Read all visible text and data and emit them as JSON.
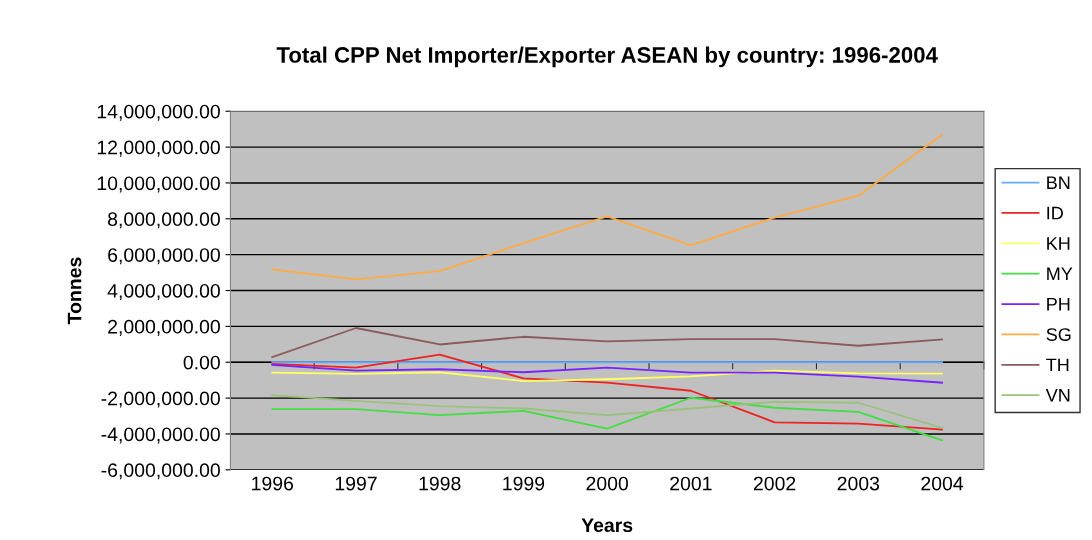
{
  "chart_data": {
    "type": "line",
    "title": "Total CPP Net Importer/Exporter ASEAN by country: 1996-2004",
    "xlabel": "Years",
    "ylabel": "Tonnes",
    "categories": [
      "1996",
      "1997",
      "1998",
      "1999",
      "2000",
      "2001",
      "2002",
      "2003",
      "2004"
    ],
    "series": [
      {
        "name": "BN",
        "color": "#66aaff",
        "values": [
          0,
          0,
          0,
          0,
          0,
          0,
          0,
          0,
          0
        ]
      },
      {
        "name": "ID",
        "color": "#ee2222",
        "values": [
          -90000,
          -300000,
          430000,
          -900000,
          -1140000,
          -1590000,
          -3350000,
          -3420000,
          -3760000
        ]
      },
      {
        "name": "KH",
        "color": "#ffff66",
        "values": [
          -580000,
          -650000,
          -560000,
          -1050000,
          -950000,
          -790000,
          -470000,
          -620000,
          -640000
        ]
      },
      {
        "name": "MY",
        "color": "#44dd44",
        "values": [
          -2620000,
          -2620000,
          -2950000,
          -2710000,
          -3700000,
          -1980000,
          -2540000,
          -2770000,
          -4360000
        ]
      },
      {
        "name": "PH",
        "color": "#7722ff",
        "values": [
          -150000,
          -470000,
          -390000,
          -560000,
          -300000,
          -580000,
          -580000,
          -800000,
          -1140000
        ]
      },
      {
        "name": "SG",
        "color": "#ffaa44",
        "values": [
          5180000,
          4620000,
          5080000,
          6640000,
          8130000,
          6520000,
          8070000,
          9290000,
          12690000
        ]
      },
      {
        "name": "TH",
        "color": "#8b5a5a",
        "values": [
          280000,
          1910000,
          990000,
          1420000,
          1160000,
          1290000,
          1290000,
          920000,
          1270000
        ]
      },
      {
        "name": "VN",
        "color": "#99c27a",
        "values": [
          -1830000,
          -2150000,
          -2450000,
          -2580000,
          -2950000,
          -2580000,
          -2210000,
          -2260000,
          -3660000
        ]
      }
    ],
    "ylim": [
      -6000000,
      14000000
    ],
    "yticks": [
      {
        "value": -6000000,
        "label": "-6,000,000.00"
      },
      {
        "value": -4000000,
        "label": "-4,000,000.00"
      },
      {
        "value": -2000000,
        "label": "-2,000,000.00"
      },
      {
        "value": 0,
        "label": "0.00"
      },
      {
        "value": 2000000,
        "label": "2,000,000.00"
      },
      {
        "value": 4000000,
        "label": "4,000,000.00"
      },
      {
        "value": 6000000,
        "label": "6,000,000.00"
      },
      {
        "value": 8000000,
        "label": "8,000,000.00"
      },
      {
        "value": 10000000,
        "label": "10,000,000.00"
      },
      {
        "value": 12000000,
        "label": "12,000,000.00"
      },
      {
        "value": 14000000,
        "label": "14,000,000.00"
      }
    ],
    "grid": "y",
    "legend": "right",
    "marker": "none",
    "line_style": "solid"
  }
}
